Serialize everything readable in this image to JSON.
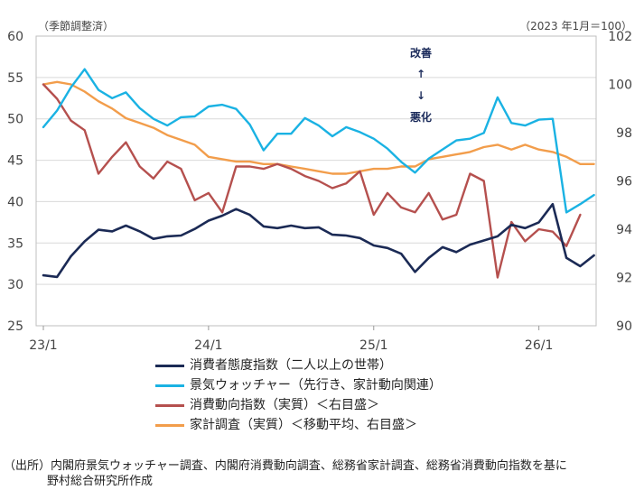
{
  "chart_data": {
    "type": "line",
    "yleft_unit": "（季節調整済）",
    "yright_unit": "（2023 年1月＝100）",
    "ylim_left": [
      25,
      60
    ],
    "ylim_right": [
      90,
      102
    ],
    "yticks_left": [
      "25",
      "30",
      "35",
      "40",
      "45",
      "50",
      "55",
      "60"
    ],
    "yticks_right": [
      "90",
      "92",
      "94",
      "96",
      "98",
      "100",
      "102"
    ],
    "xtick_labels": [
      "23/1",
      "24/1",
      "25/1",
      "26/1"
    ],
    "annotation_up": "改善",
    "annotation_down": "悪化",
    "arrow_up": "↑",
    "arrow_down": "↓",
    "series": [
      {
        "name": "消費者態度指数（二人以上の世帯）",
        "axis": "left",
        "color": "#1b2a55",
        "values": [
          31.1,
          30.9,
          33.4,
          35.2,
          36.6,
          36.4,
          37.1,
          36.4,
          35.5,
          35.8,
          35.9,
          36.7,
          37.7,
          38.3,
          39.1,
          38.4,
          37.0,
          36.8,
          37.1,
          36.8,
          36.9,
          36.0,
          35.9,
          35.6,
          34.7,
          34.4,
          33.7,
          31.5,
          33.2,
          34.5,
          33.9,
          34.8,
          35.3,
          35.8,
          37.2,
          36.8,
          37.5,
          39.7,
          33.2,
          32.2,
          33.5
        ]
      },
      {
        "name": "景気ウォッチャー（先行き、家計動向関連）",
        "axis": "left",
        "color": "#1ab2e3",
        "values": [
          49.0,
          51.0,
          53.8,
          56.0,
          53.5,
          52.5,
          53.2,
          51.3,
          50.0,
          49.2,
          50.2,
          50.3,
          51.5,
          51.7,
          51.2,
          49.3,
          46.2,
          48.2,
          48.2,
          50.1,
          49.2,
          47.9,
          49.0,
          48.4,
          47.6,
          46.4,
          44.8,
          43.5,
          45.2,
          46.3,
          47.4,
          47.6,
          48.3,
          52.6,
          49.5,
          49.2,
          49.9,
          50.0,
          38.7,
          39.7,
          40.8
        ]
      },
      {
        "name": "消費動向指数（実質）＜右目盛＞",
        "axis": "right",
        "color": "#b5504e",
        "values": [
          100.0,
          99.4,
          98.5,
          98.1,
          96.3,
          97.0,
          97.6,
          96.6,
          96.1,
          96.8,
          96.5,
          95.2,
          95.5,
          94.7,
          96.6,
          96.6,
          96.5,
          96.7,
          96.5,
          96.2,
          96.0,
          95.7,
          95.9,
          96.4,
          94.6,
          95.5,
          94.9,
          94.7,
          95.5,
          94.4,
          94.6,
          96.3,
          96.0,
          92.0,
          94.3,
          93.5,
          94.0,
          93.9,
          93.3,
          94.6
        ]
      },
      {
        "name": "家計調査（実質）＜移動平均、右目盛＞",
        "axis": "right",
        "color": "#f29d4b",
        "values": [
          100.0,
          100.1,
          100.0,
          99.7,
          99.3,
          99.0,
          98.6,
          98.4,
          98.2,
          97.9,
          97.7,
          97.5,
          97.0,
          96.9,
          96.8,
          96.8,
          96.7,
          96.7,
          96.6,
          96.5,
          96.4,
          96.3,
          96.3,
          96.4,
          96.5,
          96.5,
          96.6,
          96.6,
          96.9,
          97.0,
          97.1,
          97.2,
          97.4,
          97.5,
          97.3,
          97.5,
          97.3,
          97.2,
          97.0,
          96.7,
          96.7
        ]
      }
    ]
  },
  "source": {
    "line1": "（出所）内閣府景気ウォッチャー調査、内閣府消費動向調査、総務省家計調査、総務省消費動向指数を基に",
    "line2": "野村総合研究所作成"
  }
}
